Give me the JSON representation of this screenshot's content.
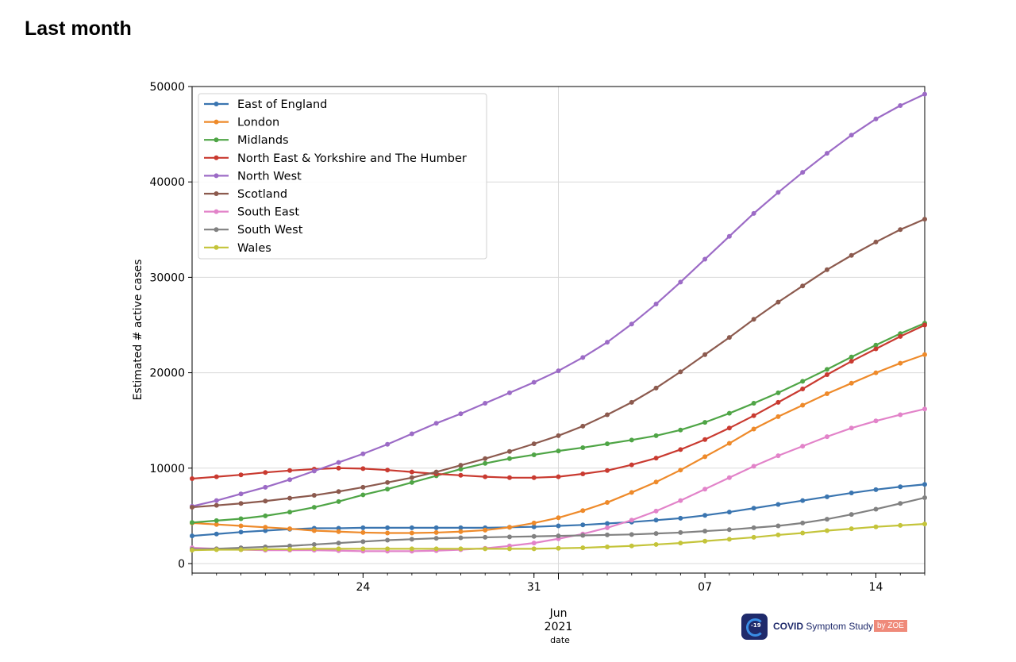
{
  "page": {
    "heading": "Last month"
  },
  "logo": {
    "badge_text": "-19",
    "name_bold": "COVID",
    "name_rest": " Symptom Study",
    "by_label": "by ZOE"
  },
  "chart_data": {
    "type": "line",
    "title": "",
    "xlabel": "date",
    "ylabel": "Estimated # active cases",
    "ylim": [
      -1000,
      50000
    ],
    "yticks": [
      0,
      10000,
      20000,
      30000,
      40000,
      50000
    ],
    "x_dates": [
      "2021-05-17",
      "2021-05-18",
      "2021-05-19",
      "2021-05-20",
      "2021-05-21",
      "2021-05-22",
      "2021-05-23",
      "2021-05-24",
      "2021-05-25",
      "2021-05-26",
      "2021-05-27",
      "2021-05-28",
      "2021-05-29",
      "2021-05-30",
      "2021-05-31",
      "2021-06-01",
      "2021-06-02",
      "2021-06-03",
      "2021-06-04",
      "2021-06-05",
      "2021-06-06",
      "2021-06-07",
      "2021-06-08",
      "2021-06-09",
      "2021-06-10",
      "2021-06-11",
      "2021-06-12",
      "2021-06-13",
      "2021-06-14",
      "2021-06-15",
      "2021-06-16"
    ],
    "xticks": [
      {
        "date": "2021-05-24",
        "label": "24"
      },
      {
        "date": "2021-05-31",
        "label": "31"
      },
      {
        "date": "2021-06-07",
        "label": "07"
      },
      {
        "date": "2021-06-14",
        "label": "14"
      }
    ],
    "major_tick": {
      "date": "2021-06-01",
      "label_month": "Jun",
      "label_year": "2021"
    },
    "grid": true,
    "legend_position": "top-left",
    "series": [
      {
        "name": "East of England",
        "color": "#3a75b0",
        "values": [
          2900,
          3100,
          3300,
          3450,
          3600,
          3700,
          3700,
          3750,
          3750,
          3750,
          3750,
          3750,
          3750,
          3800,
          3850,
          3950,
          4050,
          4200,
          4350,
          4550,
          4750,
          5050,
          5400,
          5800,
          6200,
          6600,
          7000,
          7400,
          7750,
          8050,
          8300
        ]
      },
      {
        "name": "London",
        "color": "#ee8a2a",
        "values": [
          4250,
          4100,
          3950,
          3800,
          3650,
          3450,
          3350,
          3250,
          3200,
          3200,
          3250,
          3350,
          3500,
          3800,
          4250,
          4800,
          5550,
          6400,
          7450,
          8550,
          9800,
          11200,
          12600,
          14100,
          15400,
          16600,
          17800,
          18900,
          20000,
          21000,
          21900
        ]
      },
      {
        "name": "Midlands",
        "color": "#4fa546",
        "values": [
          4300,
          4500,
          4700,
          5000,
          5400,
          5900,
          6500,
          7200,
          7800,
          8500,
          9200,
          9900,
          10500,
          11000,
          11400,
          11800,
          12150,
          12550,
          12950,
          13400,
          14000,
          14800,
          15750,
          16800,
          17900,
          19100,
          20350,
          21650,
          22900,
          24100,
          25200
        ]
      },
      {
        "name": "North East & Yorkshire and The Humber",
        "color": "#c93a30",
        "values": [
          8900,
          9100,
          9300,
          9550,
          9750,
          9900,
          10000,
          9950,
          9800,
          9600,
          9400,
          9250,
          9100,
          9000,
          9000,
          9100,
          9400,
          9750,
          10350,
          11050,
          11950,
          13000,
          14200,
          15500,
          16900,
          18300,
          19800,
          21200,
          22500,
          23800,
          25000
        ]
      },
      {
        "name": "North West",
        "color": "#9c6bc6",
        "values": [
          6000,
          6600,
          7300,
          8000,
          8800,
          9700,
          10600,
          11500,
          12500,
          13600,
          14700,
          15700,
          16800,
          17900,
          19000,
          20200,
          21600,
          23200,
          25100,
          27200,
          29500,
          31900,
          34300,
          36700,
          38900,
          41000,
          43000,
          44900,
          46600,
          48000,
          49200
        ]
      },
      {
        "name": "Scotland",
        "color": "#8c5a4e",
        "values": [
          5900,
          6100,
          6300,
          6550,
          6850,
          7150,
          7550,
          8000,
          8500,
          9000,
          9600,
          10300,
          11000,
          11750,
          12550,
          13400,
          14400,
          15600,
          16900,
          18400,
          20100,
          21900,
          23700,
          25600,
          27400,
          29100,
          30800,
          32300,
          33700,
          35000,
          36100
        ]
      },
      {
        "name": "South East",
        "color": "#e283c9",
        "values": [
          1650,
          1550,
          1450,
          1400,
          1400,
          1400,
          1350,
          1300,
          1300,
          1300,
          1350,
          1450,
          1600,
          1850,
          2150,
          2600,
          3100,
          3750,
          4550,
          5500,
          6600,
          7800,
          9000,
          10200,
          11300,
          12300,
          13300,
          14200,
          14950,
          15600,
          16200
        ]
      },
      {
        "name": "South West",
        "color": "#818181",
        "values": [
          1500,
          1550,
          1650,
          1750,
          1850,
          2000,
          2150,
          2300,
          2450,
          2550,
          2650,
          2700,
          2750,
          2800,
          2850,
          2900,
          2950,
          3000,
          3050,
          3150,
          3250,
          3400,
          3550,
          3750,
          3950,
          4250,
          4650,
          5150,
          5700,
          6300,
          6900
        ]
      },
      {
        "name": "Wales",
        "color": "#c4c43a",
        "values": [
          1400,
          1450,
          1450,
          1500,
          1500,
          1550,
          1550,
          1550,
          1550,
          1550,
          1550,
          1550,
          1550,
          1550,
          1550,
          1600,
          1650,
          1750,
          1850,
          2000,
          2150,
          2350,
          2550,
          2750,
          3000,
          3200,
          3450,
          3650,
          3850,
          4000,
          4150
        ]
      }
    ]
  }
}
